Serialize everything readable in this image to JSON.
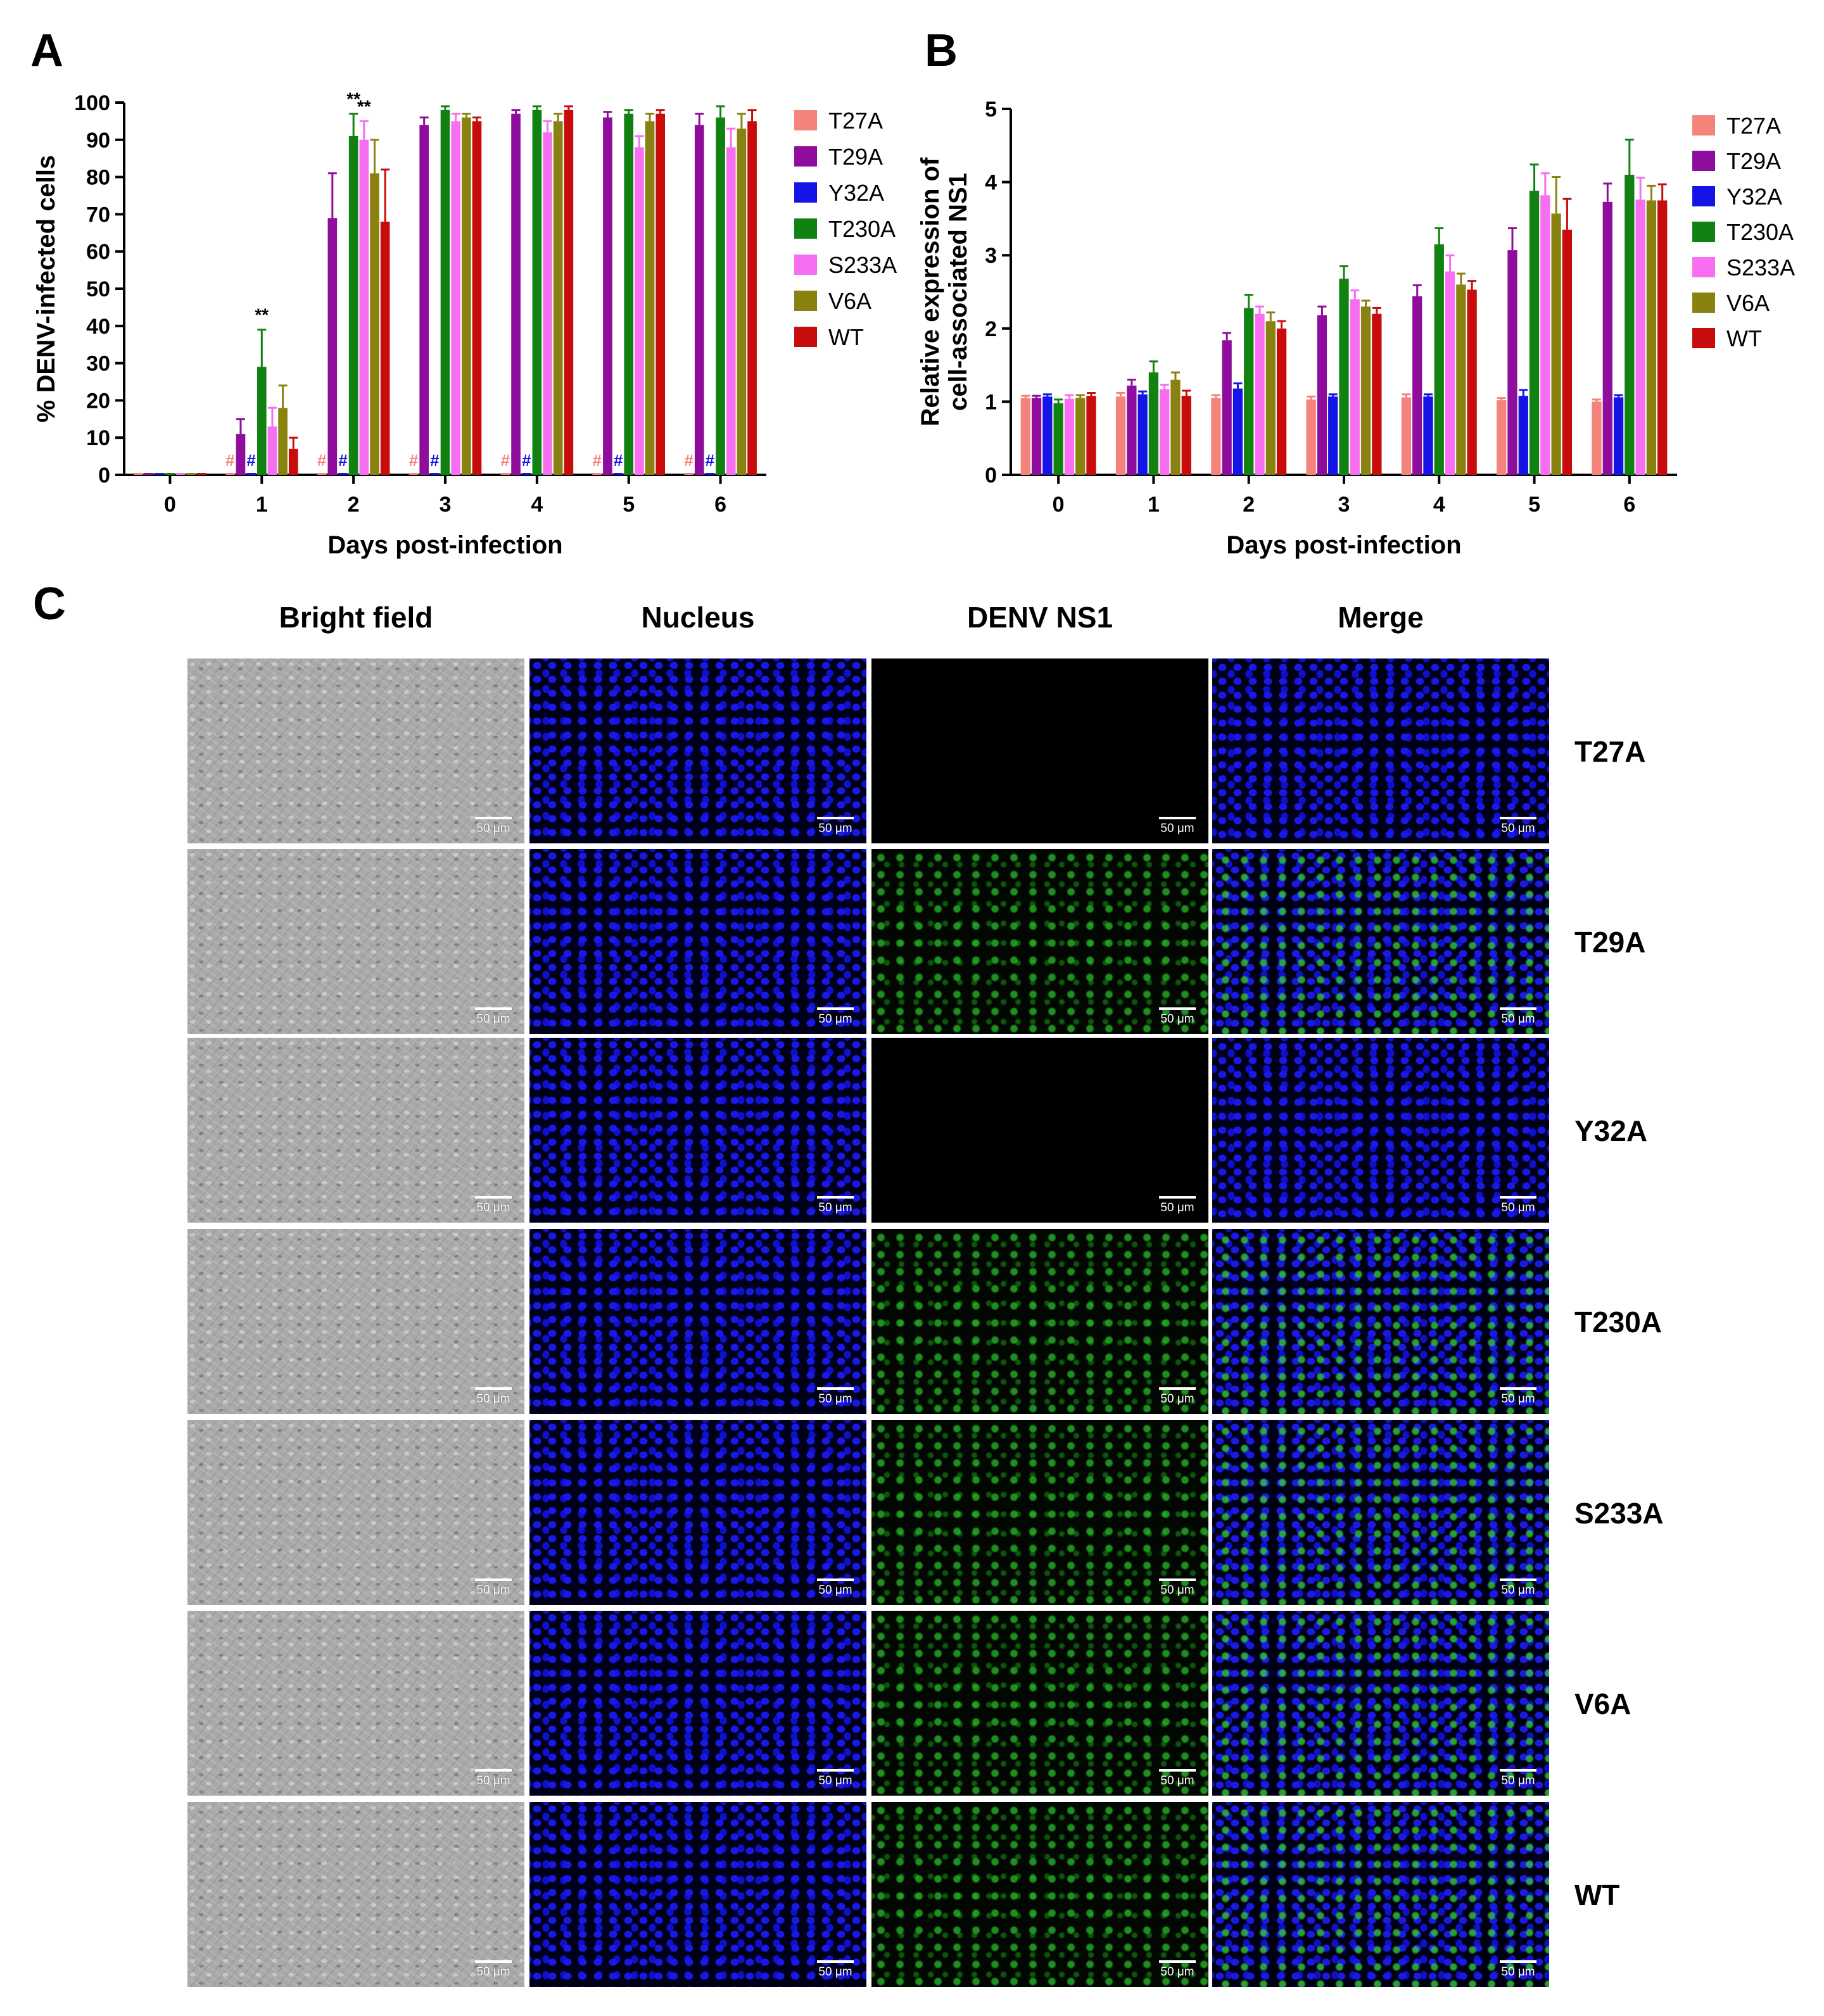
{
  "colors": {
    "T27A": "#f4837c",
    "T29A": "#8e0d9c",
    "Y32A": "#1414e6",
    "T230A": "#118211",
    "S233A": "#f76ff0",
    "V6A": "#8a8210",
    "WT": "#c80c0c"
  },
  "panels": {
    "a_letter": "A",
    "b_letter": "B",
    "c_letter": "C"
  },
  "chart_data": [
    {
      "panel": "A",
      "type": "bar",
      "xlabel": "Days post-infection",
      "ylabel": "% DENV-infected cells",
      "ylim": [
        0,
        100
      ],
      "yticks": [
        0,
        10,
        20,
        30,
        40,
        50,
        60,
        70,
        80,
        90,
        100
      ],
      "categories": [
        "0",
        "1",
        "2",
        "3",
        "4",
        "5",
        "6"
      ],
      "series": [
        {
          "name": "T27A",
          "values": [
            0,
            0,
            0,
            0,
            0,
            0,
            0
          ],
          "errors": [
            0,
            0,
            0,
            0,
            0,
            0,
            0
          ]
        },
        {
          "name": "T29A",
          "values": [
            0,
            11,
            69,
            94,
            97,
            96,
            94
          ],
          "errors": [
            0,
            4,
            12,
            2,
            1,
            1.5,
            3
          ]
        },
        {
          "name": "Y32A",
          "values": [
            0,
            0,
            0,
            0,
            0,
            0,
            0
          ],
          "errors": [
            0,
            0,
            0,
            0,
            0,
            0,
            0
          ]
        },
        {
          "name": "T230A",
          "values": [
            0,
            29,
            91,
            98,
            98,
            97,
            96
          ],
          "errors": [
            0,
            10,
            6,
            1,
            1,
            1,
            3
          ]
        },
        {
          "name": "S233A",
          "values": [
            0,
            13,
            90,
            95,
            92,
            88,
            88
          ],
          "errors": [
            0,
            5,
            5,
            2,
            3,
            3,
            5
          ]
        },
        {
          "name": "V6A",
          "values": [
            0,
            18,
            81,
            96,
            95,
            95,
            93
          ],
          "errors": [
            0,
            6,
            9,
            1,
            2,
            2,
            4
          ]
        },
        {
          "name": "WT",
          "values": [
            0,
            7,
            68,
            95,
            98,
            97,
            95
          ],
          "errors": [
            0,
            3,
            14,
            1,
            1,
            1,
            3
          ]
        }
      ],
      "annotations": [
        {
          "text": "**",
          "category": "1",
          "series": "T230A"
        },
        {
          "text": "**",
          "category": "2",
          "series": "T230A"
        },
        {
          "text": "**",
          "category": "2",
          "series": "S233A"
        },
        {
          "text": "#",
          "category": "1",
          "series": "T27A"
        },
        {
          "text": "#",
          "category": "1",
          "series": "Y32A"
        },
        {
          "text": "#",
          "category": "2",
          "series": "T27A"
        },
        {
          "text": "#",
          "category": "2",
          "series": "Y32A"
        },
        {
          "text": "#",
          "category": "3",
          "series": "T27A"
        },
        {
          "text": "#",
          "category": "3",
          "series": "Y32A"
        },
        {
          "text": "#",
          "category": "4",
          "series": "T27A"
        },
        {
          "text": "#",
          "category": "4",
          "series": "Y32A"
        },
        {
          "text": "#",
          "category": "5",
          "series": "T27A"
        },
        {
          "text": "#",
          "category": "5",
          "series": "Y32A"
        },
        {
          "text": "#",
          "category": "6",
          "series": "T27A"
        },
        {
          "text": "#",
          "category": "6",
          "series": "Y32A"
        }
      ],
      "legend": [
        "T27A",
        "T29A",
        "Y32A",
        "T230A",
        "S233A",
        "V6A",
        "WT"
      ]
    },
    {
      "panel": "B",
      "type": "bar",
      "xlabel": "Days post-infection",
      "ylabel_line1": "Relative expression of",
      "ylabel_line2": "cell-associated NS1",
      "ylim": [
        0,
        5
      ],
      "yticks": [
        0,
        1,
        2,
        3,
        4,
        5
      ],
      "categories": [
        "0",
        "1",
        "2",
        "3",
        "4",
        "5",
        "6"
      ],
      "series": [
        {
          "name": "T27A",
          "values": [
            1.05,
            1.07,
            1.05,
            1.03,
            1.06,
            1.02,
            1.0
          ],
          "errors": [
            0.03,
            0.05,
            0.04,
            0.04,
            0.04,
            0.03,
            0.03
          ]
        },
        {
          "name": "T29A",
          "values": [
            1.05,
            1.22,
            1.84,
            2.18,
            2.44,
            3.07,
            3.73
          ],
          "errors": [
            0.03,
            0.08,
            0.1,
            0.12,
            0.15,
            0.3,
            0.25
          ]
        },
        {
          "name": "Y32A",
          "values": [
            1.07,
            1.1,
            1.18,
            1.07,
            1.07,
            1.08,
            1.06
          ],
          "errors": [
            0.03,
            0.04,
            0.07,
            0.03,
            0.03,
            0.08,
            0.03
          ]
        },
        {
          "name": "T230A",
          "values": [
            0.98,
            1.4,
            2.28,
            2.68,
            3.15,
            3.88,
            4.1
          ],
          "errors": [
            0.05,
            0.15,
            0.18,
            0.17,
            0.22,
            0.36,
            0.48
          ]
        },
        {
          "name": "S233A",
          "values": [
            1.04,
            1.17,
            2.2,
            2.4,
            2.78,
            3.82,
            3.76
          ],
          "errors": [
            0.05,
            0.06,
            0.1,
            0.12,
            0.22,
            0.3,
            0.3
          ]
        },
        {
          "name": "V6A",
          "values": [
            1.05,
            1.3,
            2.1,
            2.3,
            2.6,
            3.57,
            3.75
          ],
          "errors": [
            0.04,
            0.1,
            0.12,
            0.08,
            0.15,
            0.5,
            0.2
          ]
        },
        {
          "name": "WT",
          "values": [
            1.08,
            1.08,
            2.0,
            2.2,
            2.53,
            3.35,
            3.75
          ],
          "errors": [
            0.04,
            0.07,
            0.1,
            0.08,
            0.12,
            0.42,
            0.22
          ]
        }
      ],
      "legend": [
        "T27A",
        "T29A",
        "Y32A",
        "T230A",
        "S233A",
        "V6A",
        "WT"
      ]
    }
  ],
  "micrographs": {
    "columns": [
      "Bright field",
      "Nucleus",
      "DENV NS1",
      "Merge"
    ],
    "rows": [
      {
        "label": "T27A",
        "ns1_signal": false
      },
      {
        "label": "T29A",
        "ns1_signal": true
      },
      {
        "label": "Y32A",
        "ns1_signal": false
      },
      {
        "label": "T230A",
        "ns1_signal": true
      },
      {
        "label": "S233A",
        "ns1_signal": true
      },
      {
        "label": "V6A",
        "ns1_signal": true
      },
      {
        "label": "WT",
        "ns1_signal": true
      }
    ],
    "scale_bar_label": "50 μm"
  }
}
